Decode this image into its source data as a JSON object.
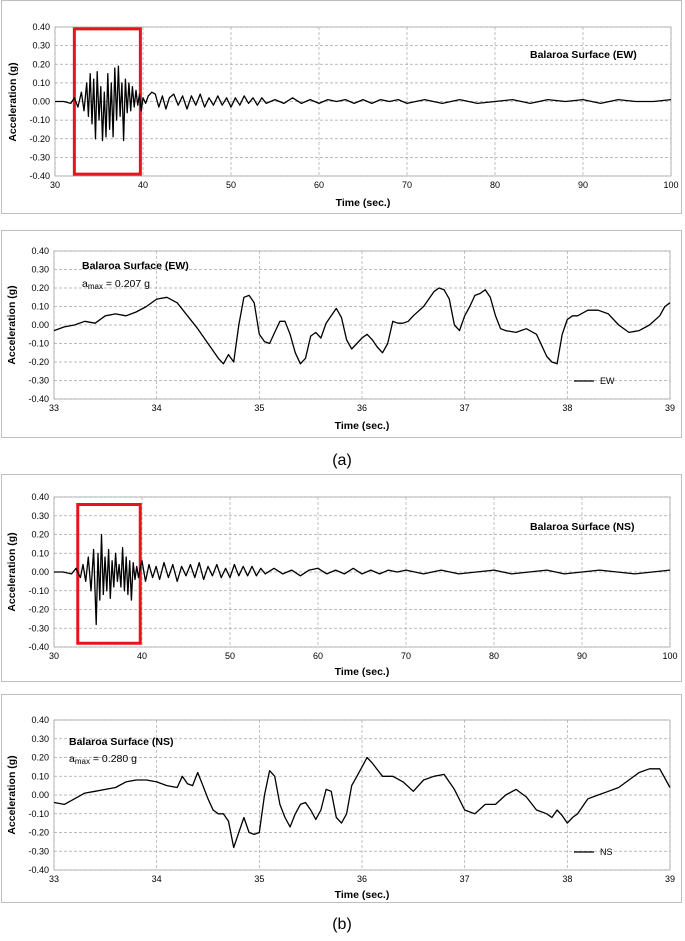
{
  "chart_data": [
    {
      "type": "line",
      "id": "c1",
      "ylabel": "Acceleration (g)",
      "xlabel": "Time (sec.)",
      "xlim": [
        30,
        100
      ],
      "ylim": [
        -0.4,
        0.4
      ],
      "xticks": [
        30,
        40,
        50,
        60,
        70,
        80,
        90,
        100
      ],
      "yticks": [
        "0.40",
        "0.30",
        "0.20",
        "0.10",
        "0.00",
        "-0.10",
        "-0.20",
        "-0.30",
        "-0.40"
      ],
      "annotation": "Balaroa Surface (EW)",
      "highlight_box": {
        "x": [
          32.2,
          39.7
        ],
        "y": [
          -0.39,
          0.39
        ],
        "color": "#e8141b"
      },
      "grid": true,
      "series": [
        {
          "x": [
            30,
            31,
            31.8,
            32.2,
            32.6,
            33,
            33.3,
            33.6,
            33.8,
            34,
            34.2,
            34.4,
            34.6,
            34.8,
            35,
            35.2,
            35.4,
            35.6,
            35.8,
            36,
            36.2,
            36.4,
            36.6,
            36.8,
            37,
            37.2,
            37.4,
            37.6,
            37.8,
            38,
            38.2,
            38.4,
            38.6,
            38.8,
            39,
            39.2,
            39.4,
            39.6,
            39.8,
            40,
            40.3,
            40.6,
            41,
            41.4,
            41.8,
            42.2,
            42.6,
            43,
            43.5,
            44,
            44.5,
            45,
            45.5,
            46,
            46.5,
            47,
            47.5,
            48,
            48.5,
            49,
            49.5,
            50,
            50.5,
            51,
            51.5,
            52,
            52.5,
            53,
            53.5,
            54,
            55,
            56,
            57,
            58,
            59,
            60,
            61,
            62,
            63,
            64,
            65,
            66,
            67,
            68,
            69,
            70,
            72,
            74,
            76,
            78,
            80,
            82,
            84,
            86,
            88,
            90,
            92,
            94,
            96,
            98,
            100
          ],
          "y": [
            0,
            0,
            -0.01,
            0.02,
            -0.03,
            0.05,
            -0.05,
            0.1,
            -0.08,
            0.15,
            -0.12,
            0.12,
            -0.2,
            0.16,
            -0.1,
            0.08,
            -0.21,
            0.05,
            -0.19,
            0.15,
            -0.15,
            0.1,
            -0.19,
            0.18,
            -0.1,
            0.19,
            -0.08,
            0.1,
            -0.21,
            0.12,
            -0.06,
            0.1,
            -0.05,
            0.08,
            -0.03,
            0.06,
            -0.02,
            0.04,
            -0.05,
            0.02,
            -0.01,
            0.03,
            0.05,
            0.04,
            -0.03,
            0.03,
            -0.04,
            0.02,
            0.04,
            -0.02,
            0.03,
            -0.04,
            0.03,
            -0.02,
            0.04,
            -0.03,
            0.02,
            -0.02,
            0.03,
            -0.02,
            0.02,
            -0.03,
            0.02,
            -0.02,
            0.03,
            -0.01,
            0.02,
            -0.02,
            0.02,
            -0.01,
            0.01,
            -0.01,
            0.02,
            -0.01,
            0.01,
            -0.01,
            0.01,
            0.0,
            0.01,
            -0.01,
            0.01,
            -0.01,
            0.01,
            0.0,
            0.01,
            -0.01,
            0.01,
            -0.01,
            0.01,
            -0.01,
            0.0,
            0.01,
            -0.01,
            0.01,
            0.0,
            0.01,
            -0.01,
            0.01,
            0.0,
            0.0,
            0.01
          ]
        }
      ]
    },
    {
      "type": "line",
      "id": "c2",
      "ylabel": "Acceleration (g)",
      "xlabel": "Time (sec.)",
      "xlim": [
        33,
        39
      ],
      "ylim": [
        -0.4,
        0.4
      ],
      "xticks": [
        33,
        34,
        35,
        36,
        37,
        38,
        39
      ],
      "yticks": [
        "0.40",
        "0.30",
        "0.20",
        "0.10",
        "0.00",
        "-0.10",
        "-0.20",
        "-0.30",
        "-0.40"
      ],
      "annotation": "Balaroa Surface (EW)",
      "amax_prefix": "a",
      "amax_sub": "max",
      "amax_value": " = 0.207 g",
      "legend": "EW",
      "grid": true,
      "series": [
        {
          "name": "EW",
          "x": [
            33,
            33.1,
            33.2,
            33.3,
            33.4,
            33.5,
            33.6,
            33.7,
            33.8,
            33.9,
            34,
            34.1,
            34.2,
            34.3,
            34.4,
            34.5,
            34.6,
            34.65,
            34.7,
            34.75,
            34.8,
            34.85,
            34.9,
            34.95,
            35,
            35.05,
            35.1,
            35.15,
            35.2,
            35.25,
            35.3,
            35.35,
            35.4,
            35.45,
            35.5,
            35.55,
            35.6,
            35.65,
            35.7,
            35.75,
            35.8,
            35.85,
            35.9,
            35.95,
            36,
            36.05,
            36.1,
            36.15,
            36.2,
            36.25,
            36.3,
            36.35,
            36.4,
            36.45,
            36.5,
            36.6,
            36.7,
            36.75,
            36.8,
            36.85,
            36.9,
            36.95,
            37,
            37.05,
            37.1,
            37.15,
            37.2,
            37.25,
            37.3,
            37.35,
            37.4,
            37.5,
            37.6,
            37.7,
            37.8,
            37.85,
            37.9,
            37.95,
            38,
            38.05,
            38.1,
            38.2,
            38.3,
            38.4,
            38.5,
            38.6,
            38.7,
            38.8,
            38.9,
            38.95,
            39
          ],
          "y": [
            -0.03,
            -0.01,
            0.0,
            0.02,
            0.01,
            0.05,
            0.06,
            0.05,
            0.07,
            0.1,
            0.14,
            0.15,
            0.12,
            0.05,
            -0.02,
            -0.1,
            -0.18,
            -0.21,
            -0.16,
            -0.2,
            0.0,
            0.15,
            0.16,
            0.12,
            -0.05,
            -0.09,
            -0.1,
            -0.04,
            0.02,
            0.02,
            -0.05,
            -0.15,
            -0.21,
            -0.18,
            -0.06,
            -0.04,
            -0.07,
            0.01,
            0.05,
            0.09,
            0.04,
            -0.08,
            -0.13,
            -0.1,
            -0.07,
            -0.05,
            -0.08,
            -0.12,
            -0.15,
            -0.1,
            0.02,
            0.01,
            0.01,
            0.02,
            0.05,
            0.1,
            0.18,
            0.2,
            0.19,
            0.14,
            0.0,
            -0.03,
            0.05,
            0.1,
            0.16,
            0.17,
            0.19,
            0.15,
            0.05,
            -0.02,
            -0.03,
            -0.04,
            -0.02,
            -0.05,
            -0.17,
            -0.2,
            -0.21,
            -0.05,
            0.03,
            0.05,
            0.05,
            0.08,
            0.08,
            0.06,
            0.0,
            -0.04,
            -0.03,
            0.0,
            0.05,
            0.1,
            0.12
          ]
        }
      ]
    },
    {
      "type": "line",
      "id": "c3",
      "ylabel": "Acceleration (g)",
      "xlabel": "Time (sec.)",
      "xlim": [
        30,
        100
      ],
      "ylim": [
        -0.4,
        0.4
      ],
      "xticks": [
        30,
        40,
        50,
        60,
        70,
        80,
        90,
        100
      ],
      "yticks": [
        "0.40",
        "0.30",
        "0.20",
        "0.10",
        "0.00",
        "-0.10",
        "-0.20",
        "-0.30",
        "-0.40"
      ],
      "annotation": "Balaroa Surface (NS)",
      "highlight_box": {
        "x": [
          32.7,
          39.8
        ],
        "y": [
          -0.38,
          0.36
        ],
        "color": "#e8141b"
      },
      "grid": true,
      "series": [
        {
          "x": [
            30,
            31,
            32,
            32.5,
            33,
            33.3,
            33.6,
            33.9,
            34.2,
            34.5,
            34.8,
            35,
            35.2,
            35.4,
            35.6,
            35.8,
            36,
            36.2,
            36.4,
            36.6,
            36.8,
            37,
            37.2,
            37.4,
            37.6,
            37.8,
            38,
            38.2,
            38.4,
            38.6,
            38.8,
            39,
            39.2,
            39.4,
            39.6,
            39.8,
            40,
            40.4,
            40.8,
            41.2,
            41.6,
            42,
            42.5,
            43,
            43.5,
            44,
            44.5,
            45,
            45.5,
            46,
            46.5,
            47,
            47.5,
            48,
            48.5,
            49,
            49.5,
            50,
            50.5,
            51,
            51.5,
            52,
            52.5,
            53,
            53.5,
            54,
            55,
            56,
            57,
            58,
            59,
            60,
            61,
            62,
            63,
            64,
            65,
            66,
            67,
            68,
            69,
            70,
            72,
            74,
            76,
            78,
            80,
            82,
            84,
            86,
            88,
            90,
            92,
            94,
            96,
            98,
            100
          ],
          "y": [
            0,
            0,
            -0.01,
            0.02,
            -0.03,
            0.04,
            -0.05,
            0.08,
            -0.1,
            0.12,
            -0.28,
            0.1,
            -0.15,
            0.2,
            -0.12,
            0.08,
            -0.1,
            0.12,
            -0.14,
            0.06,
            -0.08,
            0.1,
            -0.05,
            0.04,
            -0.08,
            0.13,
            -0.1,
            0.08,
            -0.12,
            0.06,
            -0.15,
            0.05,
            -0.04,
            0.03,
            -0.03,
            0.02,
            0.06,
            -0.05,
            0.04,
            -0.03,
            0.03,
            -0.04,
            0.05,
            -0.03,
            0.04,
            -0.05,
            0.03,
            -0.02,
            0.04,
            -0.03,
            0.05,
            -0.04,
            0.03,
            -0.02,
            0.04,
            -0.03,
            0.02,
            -0.03,
            0.04,
            -0.02,
            0.03,
            -0.02,
            0.03,
            -0.02,
            0.02,
            -0.01,
            0.02,
            -0.01,
            0.01,
            -0.02,
            0.01,
            0.02,
            -0.01,
            0.01,
            -0.01,
            0.02,
            -0.01,
            0.01,
            -0.01,
            0.01,
            0.0,
            0.01,
            -0.01,
            0.01,
            -0.01,
            0.0,
            0.01,
            -0.01,
            0.0,
            0.01,
            -0.01,
            0.0,
            0.01,
            0.0,
            -0.01,
            0.0,
            0.01
          ]
        }
      ]
    },
    {
      "type": "line",
      "id": "c4",
      "ylabel": "Acceleration (g)",
      "xlabel": "Time (sec.)",
      "xlim": [
        33,
        39
      ],
      "ylim": [
        -0.4,
        0.4
      ],
      "xticks": [
        33,
        34,
        35,
        36,
        37,
        38,
        39
      ],
      "yticks": [
        "0.40",
        "0.30",
        "0.20",
        "0.10",
        "0.00",
        "-0.10",
        "-0.20",
        "-0.30",
        "-0.40"
      ],
      "annotation": "Balaroa Surface (NS)",
      "amax_prefix": "a",
      "amax_sub": "max",
      "amax_value": " = 0.280 g",
      "legend": "NS",
      "grid": true,
      "series": [
        {
          "name": "NS",
          "x": [
            33,
            33.1,
            33.2,
            33.3,
            33.4,
            33.5,
            33.6,
            33.7,
            33.8,
            33.9,
            34,
            34.1,
            34.2,
            34.25,
            34.3,
            34.35,
            34.4,
            34.45,
            34.5,
            34.55,
            34.6,
            34.65,
            34.7,
            34.75,
            34.8,
            34.85,
            34.9,
            34.95,
            35,
            35.05,
            35.1,
            35.15,
            35.2,
            35.25,
            35.3,
            35.35,
            35.4,
            35.45,
            35.5,
            35.55,
            35.6,
            35.65,
            35.7,
            35.75,
            35.8,
            35.85,
            35.9,
            35.95,
            36,
            36.05,
            36.1,
            36.2,
            36.3,
            36.4,
            36.5,
            36.6,
            36.7,
            36.8,
            36.9,
            37,
            37.1,
            37.2,
            37.3,
            37.4,
            37.5,
            37.6,
            37.7,
            37.8,
            37.85,
            37.9,
            37.95,
            38,
            38.05,
            38.1,
            38.2,
            38.3,
            38.4,
            38.5,
            38.6,
            38.7,
            38.8,
            38.9,
            39
          ],
          "y": [
            -0.04,
            -0.05,
            -0.02,
            0.01,
            0.02,
            0.03,
            0.04,
            0.07,
            0.08,
            0.08,
            0.07,
            0.05,
            0.04,
            0.1,
            0.06,
            0.05,
            0.12,
            0.05,
            -0.02,
            -0.08,
            -0.1,
            -0.1,
            -0.14,
            -0.28,
            -0.2,
            -0.12,
            -0.2,
            -0.21,
            -0.2,
            0.0,
            0.13,
            0.1,
            -0.05,
            -0.12,
            -0.17,
            -0.1,
            -0.05,
            -0.04,
            -0.08,
            -0.13,
            -0.08,
            0.03,
            0.02,
            -0.12,
            -0.15,
            -0.1,
            0.05,
            0.1,
            0.15,
            0.2,
            0.17,
            0.1,
            0.1,
            0.07,
            0.02,
            0.08,
            0.1,
            0.11,
            0.03,
            -0.08,
            -0.1,
            -0.05,
            -0.05,
            0.0,
            0.03,
            -0.01,
            -0.08,
            -0.1,
            -0.12,
            -0.08,
            -0.11,
            -0.15,
            -0.12,
            -0.1,
            -0.02,
            0.0,
            0.02,
            0.04,
            0.08,
            0.12,
            0.14,
            0.14,
            0.04
          ]
        }
      ]
    }
  ],
  "captions": {
    "a": "(a)",
    "b": "(b)"
  }
}
